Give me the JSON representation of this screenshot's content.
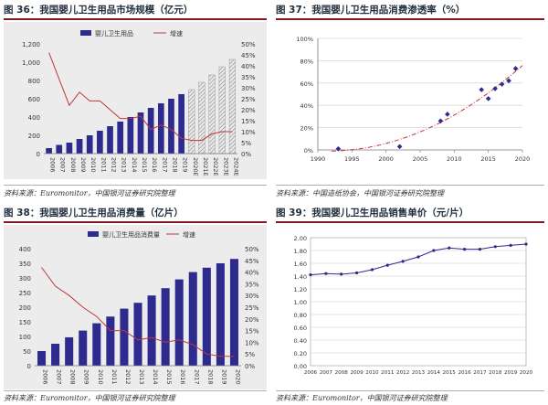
{
  "colors": {
    "bar": "#2e2b8f",
    "bar_forecast_stripe": "#9a9a9a",
    "line_red": "#c0363a",
    "line_blue": "#2e2b8f",
    "trend": "#c0363a",
    "scatter": "#2e2b8f",
    "grid": "#cccccc",
    "plot_bg_gray": "#e9e9e9"
  },
  "panels": {
    "p36": {
      "title": "图 36：我国婴儿卫生用品市场规模（亿元）",
      "source": "资料来源：Euromonitor，中国银河证券研究院整理"
    },
    "p37": {
      "title": "图 37：我国婴儿卫生用品消费渗透率（%）",
      "source": "资料来源：中国造纸协会，中国银河证券研究院整理"
    },
    "p38": {
      "title": "图 38：我国婴儿卫生用品消费量（亿片）",
      "source": "资料来源：Euromonitor，中国银河证券研究院整理"
    },
    "p39": {
      "title": "图 39：我国婴儿卫生用品销售单价（元/片）",
      "source": "资料来源：Euromonitor，中国银河证券研究院整理"
    }
  },
  "chart_data": [
    {
      "id": "p36",
      "type": "bar",
      "title": "图 36：我国婴儿卫生用品市场规模（亿元）",
      "categories": [
        "2006",
        "2007",
        "2008",
        "2009",
        "2010",
        "2011",
        "2012",
        "2013",
        "2014",
        "2015",
        "2016",
        "2017",
        "2018",
        "2019",
        "2020E",
        "2021E",
        "2022E",
        "2023E",
        "2024E"
      ],
      "series": [
        {
          "name": "婴儿卫生用品",
          "type": "bar",
          "values": [
            60,
            95,
            120,
            160,
            200,
            250,
            300,
            350,
            400,
            450,
            500,
            550,
            600,
            650,
            700,
            780,
            860,
            950,
            1030
          ],
          "forecast_from_index": 14
        },
        {
          "name": "增速",
          "type": "line",
          "axis": "right",
          "values": [
            0.46,
            0.34,
            0.22,
            0.28,
            0.24,
            0.24,
            0.2,
            0.16,
            0.16,
            0.17,
            0.11,
            0.13,
            0.11,
            0.07,
            0.06,
            0.06,
            0.09,
            0.1,
            0.1
          ]
        }
      ],
      "ylim": [
        0,
        1200
      ],
      "y_ticks": [
        "0",
        "200",
        "400",
        "600",
        "800",
        "1,000",
        "1,200"
      ],
      "y2lim": [
        0,
        0.5
      ],
      "y2_ticks": [
        "0%",
        "5%",
        "10%",
        "15%",
        "20%",
        "25%",
        "30%",
        "35%",
        "40%",
        "45%",
        "50%"
      ],
      "legend": "top"
    },
    {
      "id": "p37",
      "type": "scatter",
      "title": "图 37：我国婴儿卫生用品消费渗透率（%）",
      "points": [
        {
          "x": 1993,
          "y": 0.01
        },
        {
          "x": 2002,
          "y": 0.03
        },
        {
          "x": 2008,
          "y": 0.26
        },
        {
          "x": 2009,
          "y": 0.32
        },
        {
          "x": 2014,
          "y": 0.54
        },
        {
          "x": 2015,
          "y": 0.46
        },
        {
          "x": 2016,
          "y": 0.55
        },
        {
          "x": 2017,
          "y": 0.59
        },
        {
          "x": 2018,
          "y": 0.62
        },
        {
          "x": 2019,
          "y": 0.73
        }
      ],
      "trendline": "polynomial",
      "xlim": [
        1990,
        2020
      ],
      "x_ticks": [
        "1990",
        "1995",
        "2000",
        "2005",
        "2010",
        "2015",
        "2020"
      ],
      "ylim": [
        0,
        1.0
      ],
      "y_ticks": [
        "0%",
        "20%",
        "40%",
        "60%",
        "80%",
        "100%"
      ],
      "grid": true
    },
    {
      "id": "p38",
      "type": "bar",
      "title": "图 38：我国婴儿卫生用品消费量（亿片）",
      "categories": [
        "2006",
        "2007",
        "2008",
        "2009",
        "2010",
        "2011",
        "2012",
        "2013",
        "2014",
        "2015",
        "2016",
        "2017",
        "2018",
        "2019",
        "2020"
      ],
      "series": [
        {
          "name": "婴儿卫生用品消费量",
          "type": "bar",
          "values": [
            50,
            75,
            97,
            120,
            145,
            168,
            195,
            215,
            240,
            265,
            295,
            320,
            335,
            350,
            365
          ]
        },
        {
          "name": "增速",
          "type": "line",
          "axis": "right",
          "values": [
            0.42,
            0.34,
            0.3,
            0.25,
            0.21,
            0.15,
            0.15,
            0.11,
            0.12,
            0.1,
            0.11,
            0.09,
            0.05,
            0.04,
            0.04
          ]
        }
      ],
      "ylim": [
        0,
        400
      ],
      "y_ticks": [
        "0",
        "50",
        "100",
        "150",
        "200",
        "250",
        "300",
        "350",
        "400"
      ],
      "y2lim": [
        0,
        0.5
      ],
      "y2_ticks": [
        "0%",
        "5%",
        "10%",
        "15%",
        "20%",
        "25%",
        "30%",
        "35%",
        "40%",
        "45%",
        "50%"
      ],
      "legend": "top"
    },
    {
      "id": "p39",
      "type": "line",
      "title": "图 39：我国婴儿卫生用品销售单价（元/片）",
      "categories": [
        "2006",
        "2007",
        "2008",
        "2009",
        "2010",
        "2011",
        "2012",
        "2013",
        "2014",
        "2015",
        "2016",
        "2017",
        "2018",
        "2019",
        "2020"
      ],
      "series": [
        {
          "name": "",
          "values": [
            1.42,
            1.44,
            1.43,
            1.45,
            1.5,
            1.57,
            1.63,
            1.7,
            1.8,
            1.84,
            1.82,
            1.82,
            1.86,
            1.88,
            1.9
          ]
        }
      ],
      "ylim": [
        0,
        2.0
      ],
      "y_ticks": [
        "0.00",
        "0.20",
        "0.40",
        "0.60",
        "0.80",
        "1.00",
        "1.20",
        "1.40",
        "1.60",
        "1.80",
        "2.00"
      ],
      "grid": true
    }
  ]
}
